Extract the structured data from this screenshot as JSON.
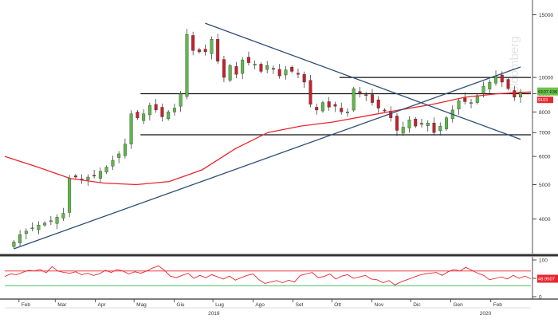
{
  "chart_data": [
    {
      "type": "candlestick",
      "title": "",
      "yscale": "log",
      "ylim": [
        3200,
        16500
      ],
      "yticks": [
        4000,
        5000,
        6000,
        7000,
        8000,
        9000,
        10000,
        15000
      ],
      "ytick_labels": [
        "4000",
        "5000",
        "6000",
        "7000",
        "8000",
        "9000",
        "10000",
        "15000"
      ],
      "last_price_label": "9107.6367",
      "last_ma_label": "9103",
      "series": [
        {
          "name": "price",
          "kind": "ohlc",
          "period": "weekly",
          "start": "2019-01-28",
          "end": "2020-02-24",
          "close": [
            3450,
            3620,
            3700,
            3780,
            3850,
            3900,
            3960,
            4050,
            4150,
            5200,
            5250,
            5150,
            5250,
            5300,
            5450,
            5600,
            5850,
            6100,
            6500,
            7900,
            7700,
            7900,
            8350,
            8100,
            7750,
            8000,
            8200,
            9000,
            13200,
            11900,
            11800,
            11800,
            12800,
            11100,
            10000,
            10800,
            10200,
            11200,
            11000,
            10900,
            10400,
            10800,
            10600,
            10100,
            10500,
            10400,
            10200,
            9700,
            8400,
            8100,
            8500,
            8250,
            8300,
            8000,
            8000,
            9300,
            9000,
            8900,
            8500,
            8200,
            8050,
            7700,
            7100,
            7250,
            7600,
            7300,
            7400,
            7450,
            7000,
            7300,
            7700,
            8100,
            8600,
            8550,
            8500,
            8900,
            9450,
            9700,
            10100,
            9700,
            9300,
            8800,
            9108
          ],
          "trend": "uptrend Jan-Jun 2019 (~3500 to ~13500), correction Jul-Nov 2019 (~8000), recovery to ~10300 Feb 2020, last close 9107.64"
        },
        {
          "name": "moving_average",
          "color": "#e8262f",
          "values": [
            6000,
            5600,
            5200,
            5050,
            5000,
            5100,
            5500,
            6300,
            7000,
            7300,
            7500,
            7800,
            8100,
            8400,
            8800,
            9000,
            9103
          ]
        }
      ],
      "horizontal_lines": [
        10000,
        9000,
        6900
      ],
      "trendlines": [
        {
          "from": [
            "2019-01-28",
            3300
          ],
          "to": [
            "2020-02-24",
            10700
          ]
        },
        {
          "from": [
            "2019-06-25",
            14200
          ],
          "to": [
            "2020-02-24",
            6700
          ]
        }
      ]
    },
    {
      "type": "line",
      "name": "oscillator",
      "ylim": [
        0,
        100
      ],
      "yticks": [
        0,
        50,
        100
      ],
      "ytick_labels": [
        "0",
        "50",
        "100"
      ],
      "levels": [
        {
          "value": 70,
          "color": "#e8262f"
        },
        {
          "value": 30,
          "color": "#2db84d"
        }
      ],
      "last_value_label": "48.9507",
      "values": [
        55,
        62,
        60,
        66,
        72,
        70,
        74,
        65,
        82,
        70,
        66,
        64,
        68,
        60,
        64,
        58,
        62,
        72,
        66,
        74,
        70,
        62,
        68,
        64,
        70,
        78,
        84,
        72,
        56,
        52,
        58,
        64,
        50,
        58,
        52,
        60,
        54,
        48,
        56,
        45,
        52,
        58,
        62,
        46,
        36,
        40,
        44,
        38,
        45,
        40,
        58,
        62,
        66,
        52,
        55,
        62,
        48,
        56,
        60,
        50,
        54,
        58,
        48,
        46,
        38,
        44,
        32,
        40,
        46,
        52,
        58,
        62,
        64,
        66,
        58,
        68,
        74,
        70,
        80,
        72,
        64,
        58,
        46,
        50,
        54,
        48,
        58,
        50,
        56,
        49
      ]
    }
  ],
  "x_axis": {
    "labels": [
      "Feb",
      "Mar",
      "Apr",
      "Mag",
      "Giu",
      "Lug",
      "Ago",
      "Set",
      "Ott",
      "Nov",
      "Dic",
      "Gen",
      "Feb"
    ],
    "years": [
      "2019",
      "2020"
    ]
  },
  "watermark": "Bloomberg",
  "colors": {
    "up": "#5fb84a",
    "down": "#c8202a",
    "ma": "#e8262f",
    "trendline": "#2d4e74",
    "level": "#111111",
    "price_tag": "#6cc24a",
    "ma_tag": "#e8262f",
    "osc_tag": "#e8262f"
  }
}
